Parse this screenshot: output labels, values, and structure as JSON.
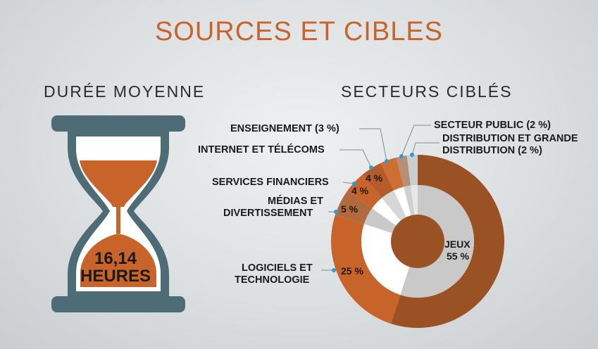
{
  "header": {
    "title": "SOURCES ET CIBLES"
  },
  "left": {
    "subtitle": "DURÉE MOYENNE",
    "value": "16,14",
    "unit": "HEURES"
  },
  "right": {
    "subtitle": "SECTEURS CIBLÉS"
  },
  "colors": {
    "accent": "#c8642a",
    "accent_dark": "#9a5124",
    "hourglass_frame": "#4e6c76",
    "hourglass_glass": "#ffffff",
    "hourglass_sand": "#c8642a"
  },
  "chart_data": {
    "type": "pie",
    "series": [
      {
        "label": "JEUX",
        "value": 55,
        "value_text": "55 %"
      },
      {
        "label": "LOGICIELS ET TECHNOLOGIE",
        "label_lines": [
          "LOGICIELS ET",
          "TECHNOLOGIE"
        ],
        "value": 25,
        "value_text": "25 %"
      },
      {
        "label": "MÉDIAS ET DIVERTISSEMENT",
        "label_lines": [
          "MÉDIAS ET",
          "DIVERTISSEMENT"
        ],
        "value": 5,
        "value_text": "5 %"
      },
      {
        "label": "SERVICES FINANCIERS",
        "value": 4,
        "value_text": "4 %"
      },
      {
        "label": "INTERNET ET TÉLÉCOMS",
        "value": 4,
        "value_text": "4 %"
      },
      {
        "label": "ENSEIGNEMENT (3 %)",
        "value": 3
      },
      {
        "label": "SECTEUR PUBLIC (2 %)",
        "value": 2
      },
      {
        "label": "DISTRIBUTION ET GRANDE DISTRIBUTION (2 %)",
        "label_lines": [
          "DISTRIBUTION ET GRANDE",
          "DISTRIBUTION (2 %)"
        ],
        "value": 2
      }
    ]
  }
}
